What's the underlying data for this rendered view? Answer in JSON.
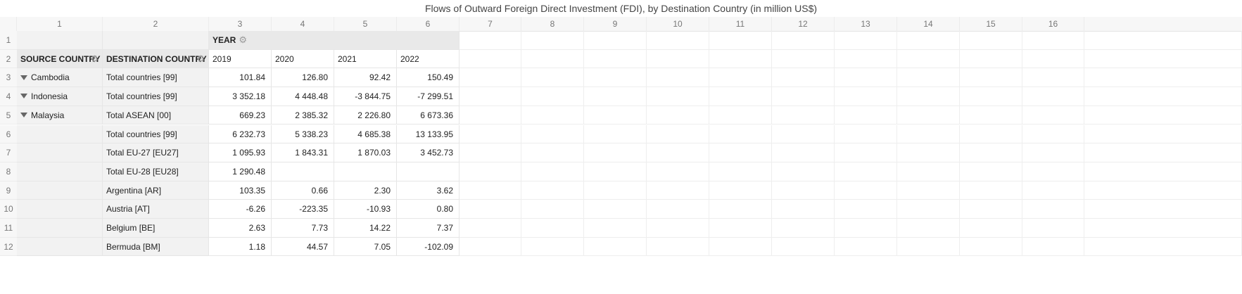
{
  "title": "Flows of Outward Foreign Direct Investment (FDI), by Destination Country (in million US$)",
  "column_headers": [
    "1",
    "2",
    "3",
    "4",
    "5",
    "6",
    "7",
    "8",
    "9",
    "10",
    "11",
    "12",
    "13",
    "14",
    "15",
    "16"
  ],
  "row_headers": [
    "1",
    "2",
    "3",
    "4",
    "5",
    "6",
    "7",
    "8",
    "9",
    "10",
    "11",
    "12"
  ],
  "pivot": {
    "year_label": "YEAR",
    "source_label": "SOURCE COUNTRY",
    "destination_label": "DESTINATION COUNTRY",
    "years": [
      "2019",
      "2020",
      "2021",
      "2022"
    ]
  },
  "rows": [
    {
      "source": "Cambodia",
      "destination": "Total countries [99]",
      "values": [
        "101.84",
        "126.80",
        "92.42",
        "150.49"
      ]
    },
    {
      "source": "Indonesia",
      "destination": "Total countries [99]",
      "values": [
        "3 352.18",
        "4 448.48",
        "-3 844.75",
        "-7 299.51"
      ]
    },
    {
      "source": "Malaysia",
      "destination": "Total ASEAN [00]",
      "values": [
        "669.23",
        "2 385.32",
        "2 226.80",
        "6 673.36"
      ]
    },
    {
      "source": "",
      "destination": "Total countries [99]",
      "values": [
        "6 232.73",
        "5 338.23",
        "4 685.38",
        "13 133.95"
      ]
    },
    {
      "source": "",
      "destination": "Total EU-27 [EU27]",
      "values": [
        "1 095.93",
        "1 843.31",
        "1 870.03",
        "3 452.73"
      ]
    },
    {
      "source": "",
      "destination": "Total EU-28 [EU28]",
      "values": [
        "1 290.48",
        "",
        "",
        ""
      ]
    },
    {
      "source": "",
      "destination": "Argentina [AR]",
      "values": [
        "103.35",
        "0.66",
        "2.30",
        "3.62"
      ]
    },
    {
      "source": "",
      "destination": "Austria [AT]",
      "values": [
        "-6.26",
        "-223.35",
        "-10.93",
        "0.80"
      ]
    },
    {
      "source": "",
      "destination": "Belgium [BE]",
      "values": [
        "2.63",
        "7.73",
        "14.22",
        "7.37"
      ]
    },
    {
      "source": "",
      "destination": "Bermuda [BM]",
      "values": [
        "1.18",
        "44.57",
        "7.05",
        "-102.09"
      ]
    }
  ],
  "icons": {
    "settings": "gear-icon",
    "collapse": "triangle-down-icon"
  }
}
